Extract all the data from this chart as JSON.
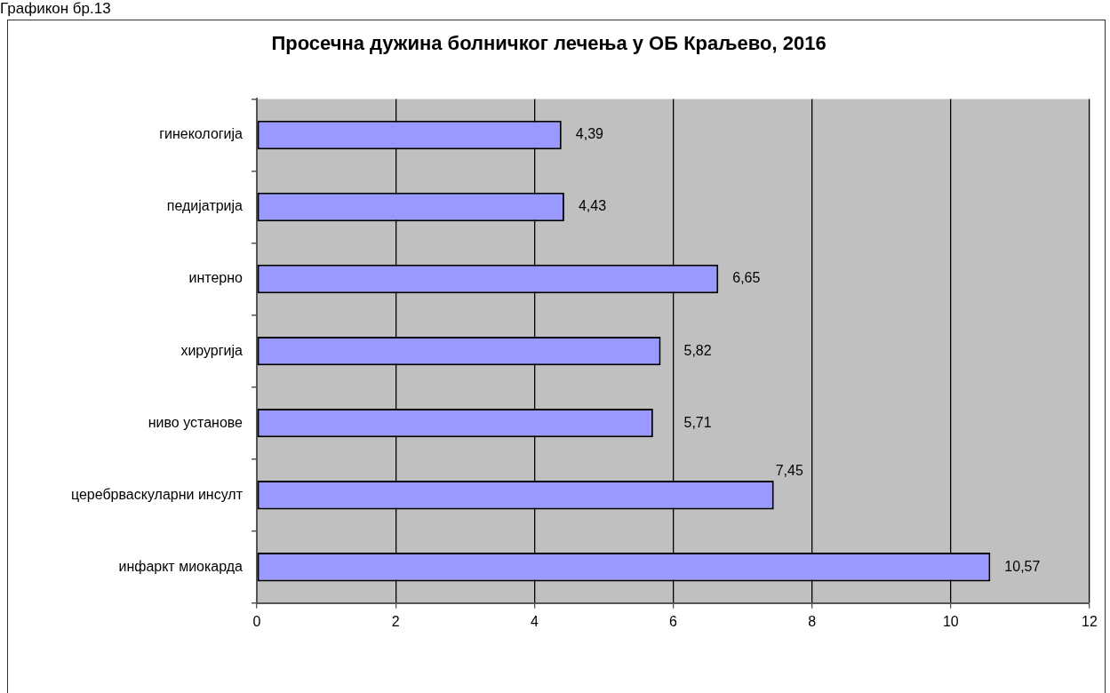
{
  "chart_data": {
    "type": "bar",
    "orientation": "horizontal",
    "title": "Просечна дужина болничког лечења у ОБ Краљево, 2016",
    "annotations": [
      "Графикон бр.13"
    ],
    "categories": [
      "гинекологија",
      "педијатрија",
      "интерно",
      "хирургија",
      "ниво установе",
      "церебрваскуларни инсулт",
      "инфаркт миокарда"
    ],
    "values": [
      4.39,
      4.43,
      6.65,
      5.82,
      5.71,
      7.45,
      10.57
    ],
    "value_labels": [
      "4,39",
      "4,43",
      "6,65",
      "5,82",
      "5,71",
      "7,45",
      "10,57"
    ],
    "color": "#9999ff",
    "xlim": [
      0,
      12
    ],
    "xticks": [
      0,
      2,
      4,
      6,
      8,
      10,
      12
    ],
    "grid": "x"
  }
}
